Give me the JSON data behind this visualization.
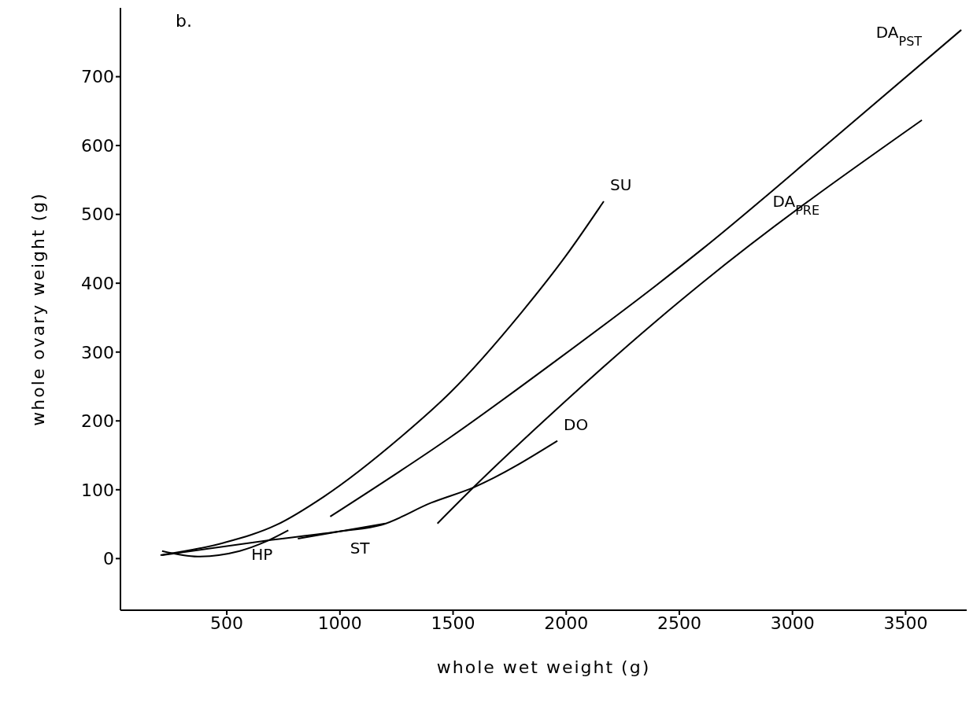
{
  "chart_data": {
    "type": "line",
    "xlabel": "whole wet weight (g)",
    "ylabel": "whole ovary weight (g)",
    "annotations": [
      "b."
    ],
    "xlim": [
      30,
      3770
    ],
    "xticks": [
      500,
      1000,
      1500,
      2000,
      2500,
      3000,
      3500
    ],
    "ylim": [
      -75,
      800
    ],
    "yticks": [
      0,
      100,
      200,
      300,
      400,
      500,
      600,
      700
    ],
    "marker": "none",
    "line_style": "solid",
    "series": [
      {
        "name": "SU",
        "color": "#000000",
        "x": [
          207,
          487,
          720,
          929,
          1267,
          1490,
          1801,
          1999,
          2166
        ],
        "values": [
          5,
          23,
          49,
          90,
          176,
          242,
          357,
          440,
          519
        ]
      },
      {
        "name": "DA$_{PST}$",
        "color": "#000000",
        "x": [
          957,
          1487,
          1961,
          2394,
          2603,
          3185,
          3746
        ],
        "values": [
          61,
          176,
          289,
          396,
          450,
          611,
          768
        ]
      },
      {
        "name": "DA$_{PRE}$",
        "color": "#000000",
        "x": [
          1431,
          1592,
          1961,
          2394,
          2603,
          3572
        ],
        "values": [
          51,
          104,
          218,
          344,
          401,
          637
        ]
      },
      {
        "name": "DO",
        "color": "#000000",
        "x": [
          214,
          675,
          1010,
          1184,
          1403,
          1595,
          1961
        ],
        "values": [
          5,
          26,
          40,
          49,
          81,
          104,
          171
        ]
      },
      {
        "name": "HP",
        "color": "#000000",
        "x": [
          214,
          371,
          557,
          675,
          772
        ],
        "values": [
          11,
          3,
          11,
          25,
          41
        ]
      },
      {
        "name": "ST",
        "color": "#000000",
        "x": [
          814,
          1010,
          1201
        ],
        "values": [
          29,
          40,
          51
        ]
      }
    ]
  }
}
